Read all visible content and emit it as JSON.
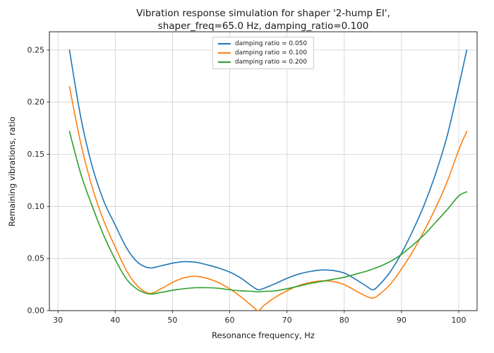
{
  "chart_data": {
    "type": "line",
    "title_lines": [
      "Vibration response simulation for shaper '2-hump EI',",
      "shaper_freq=65.0 Hz, damping_ratio=0.100"
    ],
    "xlabel": "Resonance frequency, Hz",
    "ylabel": "Remaining vibrations, ratio",
    "xlim": [
      28.5,
      103.2
    ],
    "ylim": [
      0.0,
      0.2675
    ],
    "xticks": [
      30,
      40,
      50,
      60,
      70,
      80,
      90,
      100
    ],
    "yticks": [
      0.0,
      0.05,
      0.1,
      0.15,
      0.2,
      0.25
    ],
    "ytick_labels": [
      "0.00",
      "0.05",
      "0.10",
      "0.15",
      "0.20",
      "0.25"
    ],
    "grid": true,
    "legend_position": "upper center",
    "x": [
      32,
      34,
      36,
      38,
      40,
      42,
      44,
      46,
      48,
      50,
      52,
      54,
      56,
      58,
      60,
      62,
      64,
      65,
      66,
      68,
      70,
      72,
      74,
      76,
      78,
      80,
      82,
      84,
      85,
      86,
      88,
      90,
      92,
      94,
      96,
      98,
      100,
      101.4
    ],
    "series": [
      {
        "name": "damping ratio = 0.050",
        "color": "#1f77b4",
        "values": [
          0.25,
          0.185,
          0.138,
          0.105,
          0.082,
          0.06,
          0.046,
          0.041,
          0.043,
          0.0455,
          0.047,
          0.0465,
          0.044,
          0.041,
          0.037,
          0.031,
          0.023,
          0.02,
          0.0215,
          0.026,
          0.031,
          0.035,
          0.0375,
          0.039,
          0.0385,
          0.036,
          0.03,
          0.023,
          0.02,
          0.024,
          0.037,
          0.055,
          0.077,
          0.102,
          0.132,
          0.168,
          0.215,
          0.25
        ]
      },
      {
        "name": "damping ratio = 0.100",
        "color": "#ff7f0e",
        "values": [
          0.215,
          0.16,
          0.118,
          0.086,
          0.061,
          0.038,
          0.023,
          0.0165,
          0.021,
          0.027,
          0.0315,
          0.033,
          0.031,
          0.027,
          0.021,
          0.013,
          0.004,
          0.0,
          0.005,
          0.013,
          0.019,
          0.024,
          0.027,
          0.0285,
          0.028,
          0.025,
          0.019,
          0.0135,
          0.012,
          0.015,
          0.025,
          0.04,
          0.057,
          0.077,
          0.099,
          0.124,
          0.154,
          0.172
        ]
      },
      {
        "name": "damping ratio = 0.200",
        "color": "#2ca02c",
        "values": [
          0.172,
          0.131,
          0.1,
          0.072,
          0.049,
          0.03,
          0.02,
          0.016,
          0.0175,
          0.0195,
          0.021,
          0.022,
          0.022,
          0.0215,
          0.02,
          0.019,
          0.0185,
          0.018,
          0.0185,
          0.019,
          0.021,
          0.0235,
          0.026,
          0.028,
          0.03,
          0.032,
          0.035,
          0.038,
          0.04,
          0.042,
          0.047,
          0.054,
          0.063,
          0.073,
          0.085,
          0.097,
          0.11,
          0.114
        ]
      }
    ]
  }
}
